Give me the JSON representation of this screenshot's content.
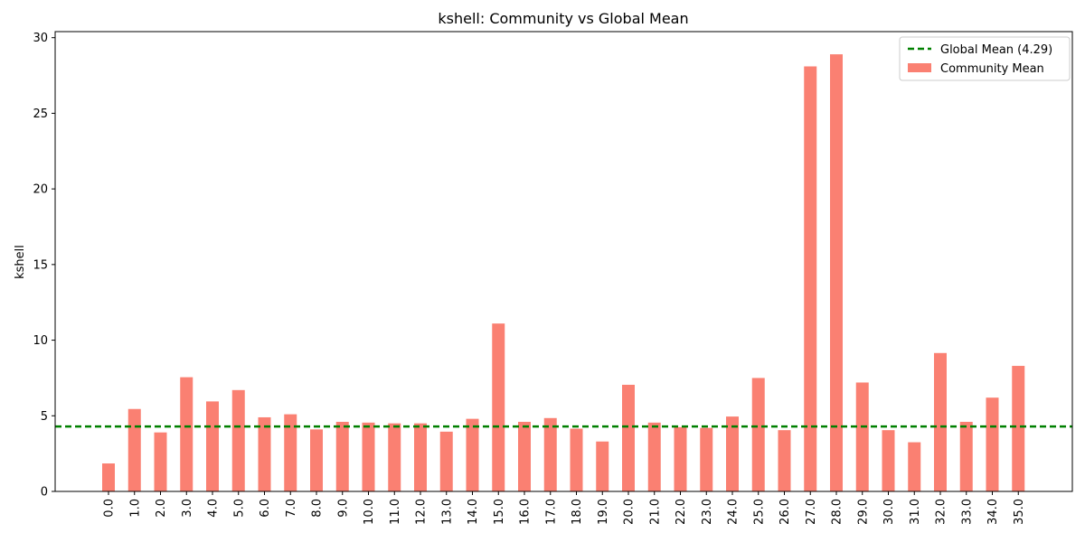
{
  "chart_data": {
    "type": "bar",
    "title": "kshell: Community vs Global Mean",
    "xlabel": "",
    "ylabel": "kshell",
    "categories": [
      "0.0",
      "1.0",
      "2.0",
      "3.0",
      "4.0",
      "5.0",
      "6.0",
      "7.0",
      "8.0",
      "9.0",
      "10.0",
      "11.0",
      "12.0",
      "13.0",
      "14.0",
      "15.0",
      "16.0",
      "17.0",
      "18.0",
      "19.0",
      "20.0",
      "21.0",
      "22.0",
      "23.0",
      "24.0",
      "25.0",
      "26.0",
      "27.0",
      "28.0",
      "29.0",
      "30.0",
      "31.0",
      "32.0",
      "33.0",
      "34.0",
      "35.0"
    ],
    "series": [
      {
        "name": "Community Mean",
        "color": "#fa8072",
        "values": [
          1.85,
          5.45,
          3.9,
          7.55,
          5.95,
          6.7,
          4.9,
          5.1,
          4.1,
          4.6,
          4.55,
          4.5,
          4.5,
          3.95,
          4.8,
          11.1,
          4.6,
          4.85,
          4.15,
          3.3,
          7.05,
          4.55,
          4.25,
          4.2,
          4.95,
          7.5,
          4.05,
          28.1,
          28.9,
          7.2,
          4.05,
          3.25,
          9.15,
          4.6,
          6.2,
          8.3
        ]
      }
    ],
    "reference_line": {
      "name": "Global Mean (4.29)",
      "value": 4.29,
      "color": "#008000",
      "style": "dashed"
    },
    "ylim": [
      0,
      30.4
    ],
    "yticks": [
      0,
      5,
      10,
      15,
      20,
      25,
      30
    ],
    "xtick_rotation": "vertical",
    "grid": false,
    "legend_position": "top-right"
  }
}
